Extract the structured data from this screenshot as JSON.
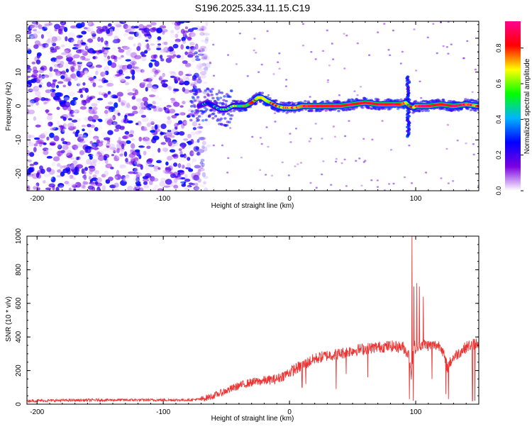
{
  "title": "S196.2025.334.11.15.C19",
  "colors": {
    "snr_line": "#ee3333",
    "frame": "#000000",
    "background": "#ffffff"
  },
  "chart_data": [
    {
      "type": "heatmap",
      "xlabel": "Height of straight line (km)",
      "ylabel": "Frequency (Hz)",
      "xlim": [
        -208,
        150
      ],
      "ylim": [
        -25,
        25
      ],
      "xticks": [
        -200,
        -100,
        0,
        100
      ],
      "yticks": [
        -20,
        -10,
        0,
        10,
        20
      ],
      "colorbar": {
        "label": "Normalized spectral amplitude",
        "range": [
          0,
          0.95
        ],
        "ticks": [
          0.0,
          0.2,
          0.4,
          0.6,
          0.8
        ],
        "tick_labels": [
          "0.0",
          "0.2",
          "0.4",
          "0.6",
          "0.8"
        ],
        "stops": [
          "#ffffff",
          "#7b00e0",
          "#0000ff",
          "#00b4ff",
          "#00ff00",
          "#ffff00",
          "#ff0000",
          "#ff0090"
        ]
      },
      "ridge": {
        "x": [
          -72,
          -65,
          -60,
          -55,
          -50,
          -45,
          -40,
          -35,
          -30,
          -25,
          -22,
          -18,
          -15,
          -10,
          -5,
          0,
          5,
          10,
          20,
          30,
          40,
          50,
          60,
          70,
          80,
          88,
          92,
          95,
          98,
          100,
          110,
          120,
          130,
          140,
          150
        ],
        "y": [
          0,
          1,
          0,
          -1,
          -1,
          0,
          0,
          0,
          1,
          2.5,
          2.5,
          1.5,
          1,
          0,
          -0.5,
          -0.5,
          -0.5,
          0,
          0,
          0,
          0,
          0.5,
          1,
          0.5,
          0.5,
          0.5,
          1,
          0,
          -0.5,
          0,
          0,
          0.5,
          0,
          0.5,
          0
        ],
        "amplitude": [
          0.3,
          0.35,
          0.4,
          0.45,
          0.45,
          0.5,
          0.55,
          0.6,
          0.65,
          0.75,
          0.8,
          0.75,
          0.7,
          0.7,
          0.75,
          0.8,
          0.8,
          0.85,
          0.9,
          0.9,
          0.9,
          0.9,
          0.9,
          0.9,
          0.9,
          0.9,
          0.8,
          0.6,
          0.7,
          0.85,
          0.9,
          0.9,
          0.9,
          0.85,
          0.8
        ]
      },
      "noise_region": {
        "x_from": -208,
        "x_to": -72,
        "amplitude": [
          0.0,
          0.3
        ]
      },
      "spike": {
        "x": 94,
        "y_from": -9,
        "y_to": 9
      }
    },
    {
      "type": "line",
      "xlabel": "Height of straight line (km)",
      "ylabel": "SNR (10 * v/v)",
      "xlim": [
        -208,
        150
      ],
      "ylim": [
        0,
        1000
      ],
      "xticks": [
        -200,
        -100,
        0,
        100
      ],
      "yticks": [
        0,
        200,
        400,
        600,
        800,
        1000
      ],
      "trend": {
        "x": [
          -208,
          -150,
          -100,
          -80,
          -70,
          -60,
          -50,
          -40,
          -30,
          -20,
          -10,
          0,
          10,
          20,
          30,
          40,
          50,
          60,
          70,
          80,
          90,
          95,
          97,
          98,
          100,
          105,
          110,
          120,
          125,
          130,
          140,
          150
        ],
        "y": [
          20,
          25,
          25,
          25,
          30,
          50,
          80,
          110,
          130,
          140,
          150,
          190,
          230,
          270,
          290,
          300,
          320,
          330,
          340,
          345,
          340,
          290,
          150,
          380,
          320,
          360,
          350,
          350,
          220,
          280,
          340,
          370
        ]
      },
      "spikes": [
        {
          "x": 97,
          "y": 1000
        },
        {
          "x": 98.5,
          "y": 700
        },
        {
          "x": 101,
          "y": 720
        },
        {
          "x": 103,
          "y": 700
        },
        {
          "x": 106,
          "y": 640
        }
      ],
      "dips": [
        {
          "x": 10,
          "y": 100
        },
        {
          "x": 13,
          "y": 120
        },
        {
          "x": 37,
          "y": 90
        },
        {
          "x": 45,
          "y": 180
        },
        {
          "x": 62,
          "y": 160
        },
        {
          "x": 95,
          "y": 30
        },
        {
          "x": 98,
          "y": 20
        },
        {
          "x": 113,
          "y": 150
        },
        {
          "x": 124,
          "y": 60
        },
        {
          "x": 126,
          "y": 30
        },
        {
          "x": 145,
          "y": 20
        },
        {
          "x": 147,
          "y": 20
        }
      ]
    }
  ]
}
